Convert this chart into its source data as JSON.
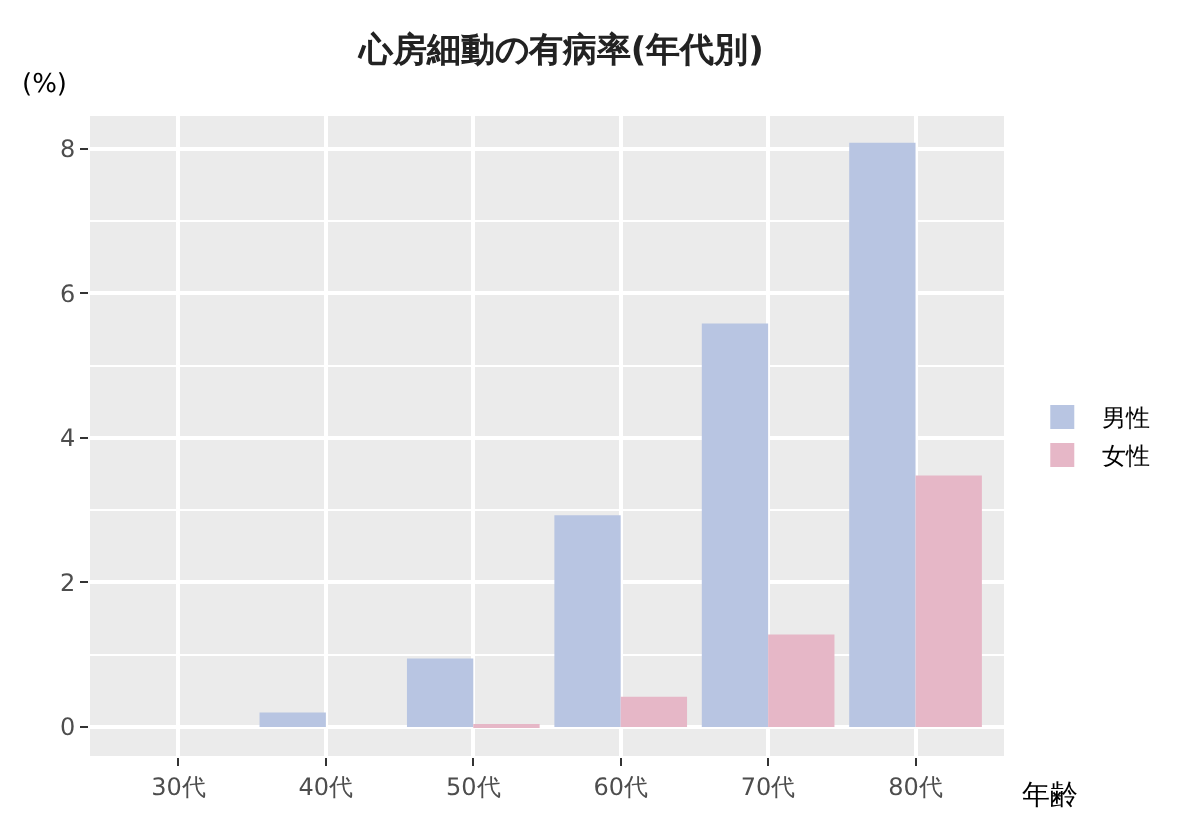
{
  "chart_data": {
    "type": "bar",
    "title": "心房細動の有病率(年代別)",
    "xlabel": "年齢",
    "ylabel": "(%)",
    "categories": [
      "30代",
      "40代",
      "50代",
      "60代",
      "70代",
      "80代"
    ],
    "series": [
      {
        "name": "男性",
        "color": "#b8c5e2",
        "values": [
          0,
          0.2,
          0.95,
          2.93,
          5.58,
          8.08
        ]
      },
      {
        "name": "女性",
        "color": "#e6b7c7",
        "values": [
          0,
          0,
          0.04,
          0.42,
          1.28,
          3.48
        ]
      }
    ],
    "ylim": [
      -0.4,
      8.45
    ],
    "yticks": [
      0,
      2,
      4,
      6,
      8
    ],
    "grid": true,
    "legend": "right"
  }
}
